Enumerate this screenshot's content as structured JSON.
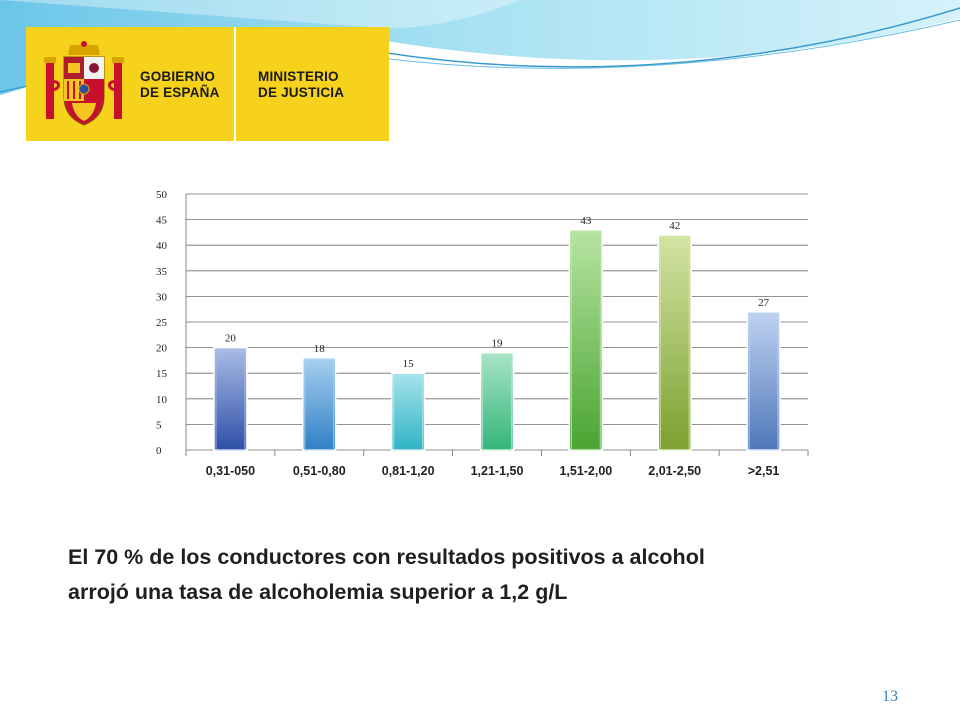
{
  "logo": {
    "line1": "GOBIERNO",
    "line2": "DE ESPAÑA",
    "line3": "MINISTERIO",
    "line4": "DE JUSTICIA",
    "background_color": "#f7d21c"
  },
  "chart_data": {
    "type": "bar",
    "categories": [
      "0,31-050",
      "0,51-0,80",
      "0,81-1,20",
      "1,21-1,50",
      "1,51-2,00",
      "2,01-2,50",
      ">2,51"
    ],
    "values": [
      20,
      18,
      15,
      19,
      43,
      42,
      27
    ],
    "data_labels": [
      "20",
      "18",
      "15",
      "19",
      "43",
      "42",
      "27"
    ],
    "ylim": [
      0,
      50
    ],
    "yticks": [
      0,
      5,
      10,
      15,
      20,
      25,
      30,
      35,
      40,
      45,
      50
    ],
    "grid": true,
    "title": "",
    "xlabel": "",
    "ylabel": "",
    "bar_colors": [
      [
        "#2f4fa8",
        "#a9bde6"
      ],
      [
        "#2f80c6",
        "#a8d0ef"
      ],
      [
        "#2fb3c4",
        "#a8e4ec"
      ],
      [
        "#34b57a",
        "#a9e4c6"
      ],
      [
        "#4aa432",
        "#b7e4a2"
      ],
      [
        "#7ca030",
        "#d3e4a4"
      ],
      [
        "#4f77b8",
        "#bfd3f2"
      ]
    ]
  },
  "caption": {
    "line1": "El 70 % de los conductores con resultados positivos  a alcohol",
    "line2": "arrojó una tasa de alcoholemia superior a 1,2 g/L"
  },
  "page_number": "13"
}
